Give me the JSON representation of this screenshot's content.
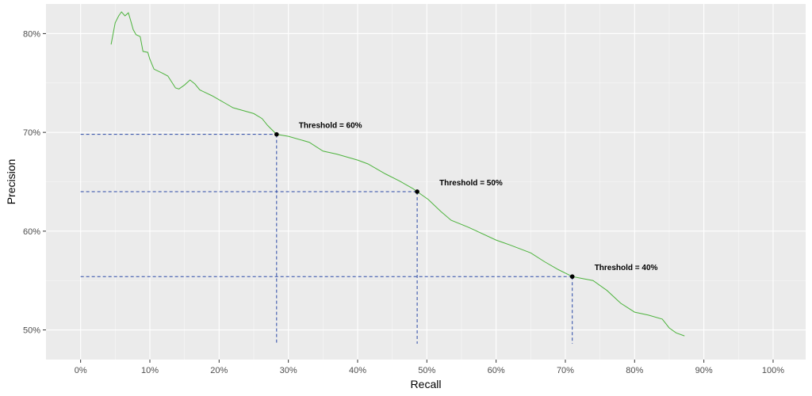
{
  "chart_data": {
    "type": "line",
    "xlabel": "Recall",
    "ylabel": "Precision",
    "xlim": [
      -0.05,
      1.047
    ],
    "ylim": [
      0.47,
      0.83
    ],
    "x_ticks": [
      0,
      0.1,
      0.2,
      0.3,
      0.4,
      0.5,
      0.6,
      0.7,
      0.8,
      0.9,
      1.0
    ],
    "x_tick_labels": [
      "0%",
      "10%",
      "20%",
      "30%",
      "40%",
      "50%",
      "60%",
      "70%",
      "80%",
      "90%",
      "100%"
    ],
    "y_ticks": [
      0.5,
      0.6,
      0.7,
      0.8
    ],
    "y_tick_labels": [
      "50%",
      "60%",
      "70%",
      "80%"
    ],
    "grid": true,
    "colors": {
      "panel": "#ebebeb",
      "grid_major": "#ffffff",
      "curve": "#4db33d",
      "guides": "#2847a6",
      "points": "#000000",
      "axis_text": "#4d4d4d"
    },
    "series": [
      {
        "points": [
          [
            0.044,
            0.789
          ],
          [
            0.047,
            0.8
          ],
          [
            0.05,
            0.811
          ],
          [
            0.055,
            0.818
          ],
          [
            0.059,
            0.822
          ],
          [
            0.064,
            0.818
          ],
          [
            0.069,
            0.821
          ],
          [
            0.072,
            0.814
          ],
          [
            0.076,
            0.804
          ],
          [
            0.08,
            0.799
          ],
          [
            0.086,
            0.797
          ],
          [
            0.09,
            0.782
          ],
          [
            0.097,
            0.781
          ],
          [
            0.1,
            0.774
          ],
          [
            0.106,
            0.764
          ],
          [
            0.118,
            0.76
          ],
          [
            0.126,
            0.757
          ],
          [
            0.137,
            0.745
          ],
          [
            0.142,
            0.744
          ],
          [
            0.15,
            0.748
          ],
          [
            0.158,
            0.753
          ],
          [
            0.165,
            0.749
          ],
          [
            0.172,
            0.743
          ],
          [
            0.19,
            0.737
          ],
          [
            0.21,
            0.729
          ],
          [
            0.22,
            0.725
          ],
          [
            0.25,
            0.719
          ],
          [
            0.262,
            0.714
          ],
          [
            0.27,
            0.707
          ],
          [
            0.283,
            0.698
          ],
          [
            0.3,
            0.696
          ],
          [
            0.33,
            0.69
          ],
          [
            0.35,
            0.681
          ],
          [
            0.37,
            0.678
          ],
          [
            0.4,
            0.672
          ],
          [
            0.415,
            0.668
          ],
          [
            0.44,
            0.658
          ],
          [
            0.46,
            0.651
          ],
          [
            0.48,
            0.643
          ],
          [
            0.486,
            0.64
          ],
          [
            0.502,
            0.632
          ],
          [
            0.52,
            0.62
          ],
          [
            0.535,
            0.611
          ],
          [
            0.56,
            0.604
          ],
          [
            0.6,
            0.591
          ],
          [
            0.62,
            0.586
          ],
          [
            0.65,
            0.578
          ],
          [
            0.67,
            0.569
          ],
          [
            0.69,
            0.561
          ],
          [
            0.71,
            0.554
          ],
          [
            0.725,
            0.552
          ],
          [
            0.74,
            0.55
          ],
          [
            0.76,
            0.54
          ],
          [
            0.78,
            0.527
          ],
          [
            0.8,
            0.518
          ],
          [
            0.82,
            0.515
          ],
          [
            0.84,
            0.511
          ],
          [
            0.85,
            0.502
          ],
          [
            0.86,
            0.497
          ],
          [
            0.872,
            0.494
          ]
        ]
      }
    ],
    "thresholds": [
      {
        "label": "Threshold = 60%",
        "recall": 0.283,
        "precision": 0.698
      },
      {
        "label": "Threshold = 50%",
        "recall": 0.486,
        "precision": 0.64
      },
      {
        "label": "Threshold = 40%",
        "recall": 0.71,
        "precision": 0.554
      }
    ]
  }
}
